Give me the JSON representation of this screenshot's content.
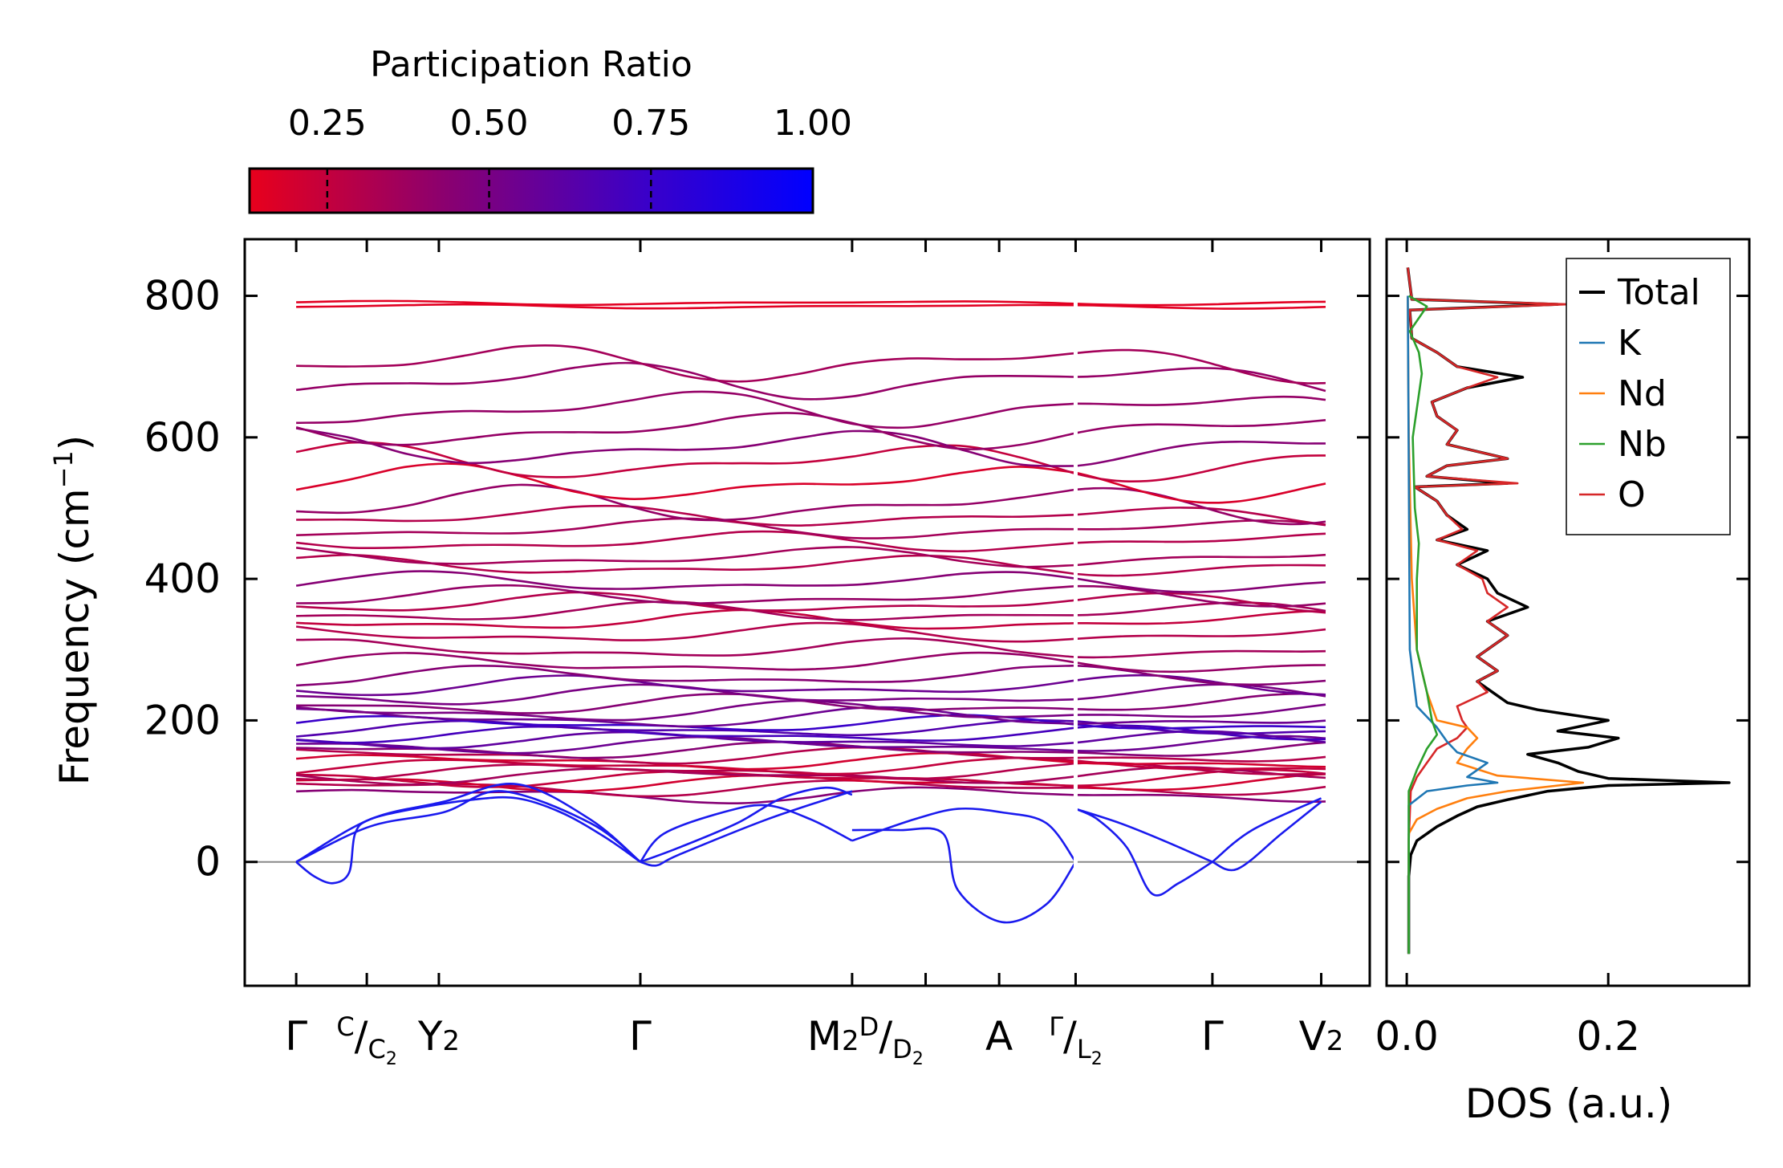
{
  "colorbar": {
    "label": "Participation Ratio",
    "ticks": [
      "0.25",
      "0.50",
      "0.75",
      "1.00"
    ],
    "tick_values": [
      0.25,
      0.5,
      0.75,
      1.0
    ],
    "range": [
      0.13,
      1.0
    ],
    "color_low": "#e8001c",
    "color_high": "#0000ff"
  },
  "chart_data": [
    {
      "type": "line",
      "name": "phonon-band-structure",
      "ylabel": "Frequency (cm",
      "ylabel_sup": "−1",
      "ylabel_end": ")",
      "ylim": [
        -175,
        880
      ],
      "yticks": [
        0,
        200,
        400,
        600,
        800
      ],
      "ytick_labels": [
        "0",
        "200",
        "400",
        "600",
        "800"
      ],
      "segments": [
        {
          "x_start": 0.0,
          "x_end": 5.3,
          "x_break": 5.3
        },
        {
          "x_start": 5.3,
          "x_end": 7.0
        }
      ],
      "xlim": [
        -0.35,
        7.3
      ],
      "high_symmetry_points": [
        {
          "x": 0.0,
          "label": "Γ"
        },
        {
          "x": 0.48,
          "label": "C",
          "sub_label": "C",
          "sub_sub": "2",
          "split": true
        },
        {
          "x": 0.97,
          "label": "Y",
          "sub": "2"
        },
        {
          "x": 2.34,
          "label": "Γ"
        },
        {
          "x": 3.78,
          "label": "M",
          "sub": "2",
          "append_split": {
            "label": "D",
            "sub_label": "D",
            "sub_sub": "2"
          }
        },
        {
          "x": 4.28,
          "label": ""
        },
        {
          "x": 4.78,
          "label": "A"
        },
        {
          "x": 5.3,
          "label": "Γ",
          "sub_label": "L",
          "sub_sub": "2",
          "split": true
        },
        {
          "x": 6.23,
          "label": "Γ"
        },
        {
          "x": 6.97,
          "label": "V",
          "sub": "2"
        }
      ],
      "zero_line": 0,
      "acoustic_branches": [
        {
          "seg": 0,
          "x": [
            0.0,
            0.12,
            0.25,
            0.36,
            0.4,
            0.5,
            0.8,
            1.2,
            1.5,
            1.8,
            2.1,
            2.34
          ],
          "y": [
            0,
            -20,
            -30,
            -15,
            40,
            60,
            75,
            88,
            90,
            70,
            35,
            0
          ]
        },
        {
          "seg": 0,
          "x": [
            0.0,
            0.5,
            1.0,
            1.5,
            2.0,
            2.34
          ],
          "y": [
            0,
            60,
            85,
            110,
            60,
            0
          ]
        },
        {
          "seg": 0,
          "x": [
            0.0,
            0.5,
            1.0,
            1.4,
            2.0,
            2.34
          ],
          "y": [
            0,
            50,
            70,
            100,
            55,
            0
          ]
        },
        {
          "seg": 0,
          "x": [
            2.34,
            2.5,
            2.9,
            3.2,
            3.5,
            3.78
          ],
          "y": [
            0,
            40,
            70,
            80,
            60,
            30
          ]
        },
        {
          "seg": 0,
          "x": [
            2.34,
            2.6,
            3.0,
            3.3,
            3.6,
            3.78
          ],
          "y": [
            0,
            20,
            55,
            90,
            105,
            95
          ]
        },
        {
          "seg": 0,
          "x": [
            2.34,
            2.45,
            2.6,
            3.2,
            3.78
          ],
          "y": [
            0,
            -5,
            10,
            60,
            100
          ]
        },
        {
          "seg": 0,
          "x": [
            3.78,
            4.1,
            4.4,
            4.5,
            4.8,
            5.1,
            5.3
          ],
          "y": [
            45,
            45,
            40,
            -40,
            -85,
            -60,
            0
          ]
        },
        {
          "seg": 0,
          "x": [
            3.78,
            4.2,
            4.5,
            4.8,
            5.1,
            5.3
          ],
          "y": [
            30,
            60,
            75,
            70,
            55,
            0
          ]
        },
        {
          "seg": 1,
          "x": [
            5.3,
            5.45,
            5.65,
            5.82,
            6.0,
            6.23
          ],
          "y": [
            75,
            60,
            20,
            -45,
            -30,
            0
          ]
        },
        {
          "seg": 1,
          "x": [
            5.3,
            5.6,
            5.9,
            6.23
          ],
          "y": [
            75,
            55,
            30,
            0
          ]
        },
        {
          "seg": 1,
          "x": [
            6.23,
            6.4,
            6.7,
            6.97
          ],
          "y": [
            0,
            -10,
            40,
            85
          ]
        },
        {
          "seg": 1,
          "x": [
            6.23,
            6.5,
            6.97
          ],
          "y": [
            0,
            45,
            90
          ]
        }
      ],
      "optical_levels": [
        95,
        105,
        112,
        118,
        122,
        128,
        135,
        142,
        150,
        158,
        165,
        172,
        180,
        188,
        195,
        203,
        212,
        222,
        235,
        248,
        262,
        280,
        300,
        322,
        340,
        352,
        365,
        375,
        395,
        418,
        430,
        452,
        470,
        488,
        505,
        535,
        565,
        585,
        610,
        640,
        680,
        705,
        785,
        790
      ],
      "optical_pr": [
        0.45,
        0.3,
        0.2,
        0.25,
        0.35,
        0.3,
        0.25,
        0.2,
        0.3,
        0.45,
        0.55,
        0.6,
        0.7,
        0.65,
        0.75,
        0.55,
        0.5,
        0.45,
        0.5,
        0.55,
        0.45,
        0.4,
        0.35,
        0.3,
        0.25,
        0.35,
        0.3,
        0.4,
        0.45,
        0.3,
        0.35,
        0.3,
        0.35,
        0.3,
        0.4,
        0.18,
        0.25,
        0.45,
        0.4,
        0.4,
        0.4,
        0.35,
        0.15,
        0.15
      ]
    },
    {
      "type": "line",
      "name": "phonon-dos",
      "xlabel": "DOS (a.u.)",
      "xlim": [
        -0.02,
        0.34
      ],
      "xticks": [
        0.0,
        0.2
      ],
      "xtick_labels": [
        "0.0",
        "0.2"
      ],
      "ylim": [
        -175,
        880
      ],
      "legend": [
        "Total",
        "K",
        "Nd",
        "Nb",
        "O"
      ],
      "legend_position": "top-right",
      "colors": {
        "Total": "#000000",
        "K": "#1f77b4",
        "Nd": "#ff7f0e",
        "Nb": "#2ca02c",
        "O": "#d62728"
      },
      "series": [
        {
          "name": "Total",
          "points": [
            [
              0.002,
              -130
            ],
            [
              0.002,
              -20
            ],
            [
              0.004,
              10
            ],
            [
              0.01,
              30
            ],
            [
              0.03,
              50
            ],
            [
              0.05,
              65
            ],
            [
              0.07,
              78
            ],
            [
              0.1,
              88
            ],
            [
              0.14,
              100
            ],
            [
              0.2,
              108
            ],
            [
              0.32,
              112
            ],
            [
              0.2,
              118
            ],
            [
              0.17,
              128
            ],
            [
              0.15,
              140
            ],
            [
              0.12,
              152
            ],
            [
              0.18,
              162
            ],
            [
              0.21,
              175
            ],
            [
              0.15,
              185
            ],
            [
              0.2,
              200
            ],
            [
              0.13,
              215
            ],
            [
              0.1,
              225
            ],
            [
              0.085,
              240
            ],
            [
              0.07,
              255
            ],
            [
              0.09,
              270
            ],
            [
              0.07,
              290
            ],
            [
              0.1,
              320
            ],
            [
              0.08,
              340
            ],
            [
              0.12,
              360
            ],
            [
              0.09,
              380
            ],
            [
              0.08,
              400
            ],
            [
              0.05,
              420
            ],
            [
              0.08,
              440
            ],
            [
              0.03,
              455
            ],
            [
              0.06,
              470
            ],
            [
              0.04,
              490
            ],
            [
              0.03,
              510
            ],
            [
              0.008,
              530
            ],
            [
              0.1,
              535
            ],
            [
              0.02,
              545
            ],
            [
              0.04,
              560
            ],
            [
              0.1,
              570
            ],
            [
              0.04,
              590
            ],
            [
              0.05,
              610
            ],
            [
              0.03,
              630
            ],
            [
              0.025,
              650
            ],
            [
              0.06,
              670
            ],
            [
              0.115,
              685
            ],
            [
              0.05,
              700
            ],
            [
              0.03,
              720
            ],
            [
              0.005,
              740
            ],
            [
              0.003,
              780
            ],
            [
              0.15,
              788
            ],
            [
              0.005,
              795
            ],
            [
              0.001,
              840
            ]
          ]
        },
        {
          "name": "O",
          "points": [
            [
              0.002,
              -130
            ],
            [
              0.002,
              30
            ],
            [
              0.004,
              100
            ],
            [
              0.01,
              120
            ],
            [
              0.02,
              140
            ],
            [
              0.03,
              160
            ],
            [
              0.05,
              175
            ],
            [
              0.06,
              190
            ],
            [
              0.055,
              200
            ],
            [
              0.05,
              220
            ],
            [
              0.08,
              240
            ],
            [
              0.07,
              255
            ],
            [
              0.09,
              270
            ],
            [
              0.07,
              290
            ],
            [
              0.1,
              320
            ],
            [
              0.08,
              340
            ],
            [
              0.1,
              360
            ],
            [
              0.08,
              380
            ],
            [
              0.075,
              400
            ],
            [
              0.05,
              420
            ],
            [
              0.07,
              440
            ],
            [
              0.03,
              455
            ],
            [
              0.055,
              470
            ],
            [
              0.04,
              490
            ],
            [
              0.03,
              510
            ],
            [
              0.008,
              530
            ],
            [
              0.11,
              535
            ],
            [
              0.02,
              545
            ],
            [
              0.04,
              560
            ],
            [
              0.1,
              570
            ],
            [
              0.04,
              590
            ],
            [
              0.05,
              610
            ],
            [
              0.03,
              630
            ],
            [
              0.025,
              650
            ],
            [
              0.06,
              670
            ],
            [
              0.09,
              685
            ],
            [
              0.05,
              700
            ],
            [
              0.03,
              720
            ],
            [
              0.005,
              740
            ],
            [
              0.003,
              780
            ],
            [
              0.16,
              788
            ],
            [
              0.005,
              795
            ],
            [
              0.001,
              840
            ]
          ]
        },
        {
          "name": "Nd",
          "points": [
            [
              0.002,
              -130
            ],
            [
              0.002,
              40
            ],
            [
              0.01,
              60
            ],
            [
              0.03,
              75
            ],
            [
              0.06,
              90
            ],
            [
              0.1,
              100
            ],
            [
              0.175,
              112
            ],
            [
              0.09,
              122
            ],
            [
              0.05,
              140
            ],
            [
              0.06,
              160
            ],
            [
              0.07,
              175
            ],
            [
              0.06,
              190
            ],
            [
              0.03,
              200
            ],
            [
              0.02,
              240
            ],
            [
              0.01,
              300
            ],
            [
              0.005,
              400
            ],
            [
              0.002,
              600
            ],
            [
              0.001,
              800
            ]
          ]
        },
        {
          "name": "K",
          "points": [
            [
              0.002,
              -130
            ],
            [
              0.002,
              80
            ],
            [
              0.02,
              100
            ],
            [
              0.06,
              108
            ],
            [
              0.09,
              112
            ],
            [
              0.06,
              120
            ],
            [
              0.08,
              140
            ],
            [
              0.05,
              155
            ],
            [
              0.04,
              170
            ],
            [
              0.03,
              190
            ],
            [
              0.01,
              220
            ],
            [
              0.003,
              300
            ],
            [
              0.001,
              800
            ]
          ]
        },
        {
          "name": "Nb",
          "points": [
            [
              0.002,
              -130
            ],
            [
              0.002,
              100
            ],
            [
              0.01,
              130
            ],
            [
              0.02,
              160
            ],
            [
              0.03,
              180
            ],
            [
              0.025,
              200
            ],
            [
              0.02,
              240
            ],
            [
              0.01,
              300
            ],
            [
              0.01,
              400
            ],
            [
              0.012,
              450
            ],
            [
              0.008,
              500
            ],
            [
              0.006,
              600
            ],
            [
              0.015,
              690
            ],
            [
              0.012,
              720
            ],
            [
              0.003,
              750
            ],
            [
              0.02,
              785
            ],
            [
              0.002,
              800
            ]
          ]
        }
      ]
    }
  ]
}
